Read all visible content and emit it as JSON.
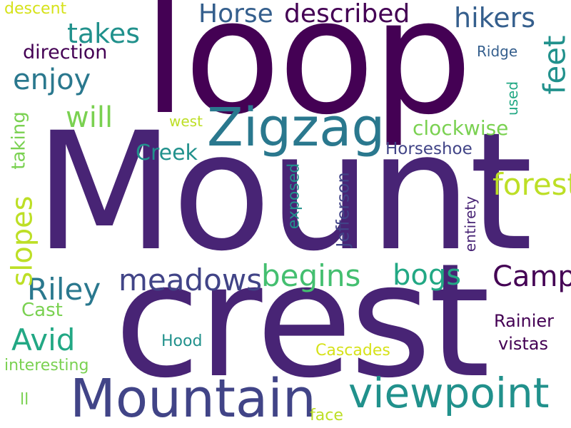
{
  "words": {
    "mount": "Mount",
    "loop": "loop",
    "crest": "crest",
    "mountain": "Mountain",
    "zigzag": "Zigzag",
    "viewpoint": "viewpoint",
    "forested": "forested",
    "horse": "Horse",
    "described": "described",
    "hikers": "hikers",
    "takes": "takes",
    "feet": "feet",
    "enjoy": "enjoy",
    "direction": "direction",
    "will": "will",
    "riley": "Riley",
    "meadows": "meadows",
    "begins": "begins",
    "bogs": "bogs",
    "camp": "Camp",
    "avid": "Avid",
    "slopes": "slopes",
    "creek": "Creek",
    "clockwise": "clockwise",
    "horseshoe": "Horseshoe",
    "jefferson": "Jefferson",
    "exposed": "exposed",
    "entirety": "entirety",
    "taking": "taking",
    "cast": "Cast",
    "hood": "Hood",
    "cascades": "Cascades",
    "rainier": "Rainier",
    "vistas": "vistas",
    "interesting": "interesting",
    "descent": "descent",
    "ridge": "Ridge",
    "used": "used",
    "west": "west",
    "ll": "ll",
    "face": "face"
  },
  "palette": {
    "dark_purple": "#440154",
    "purple": "#482475",
    "indigo": "#414487",
    "blue": "#355f8d",
    "teal_blue": "#2a788e",
    "teal": "#21918c",
    "green_teal": "#22a884",
    "green": "#44bf70",
    "light_green": "#7ad151",
    "yellow_green": "#bddf26",
    "yellow": "#d6e21a"
  }
}
